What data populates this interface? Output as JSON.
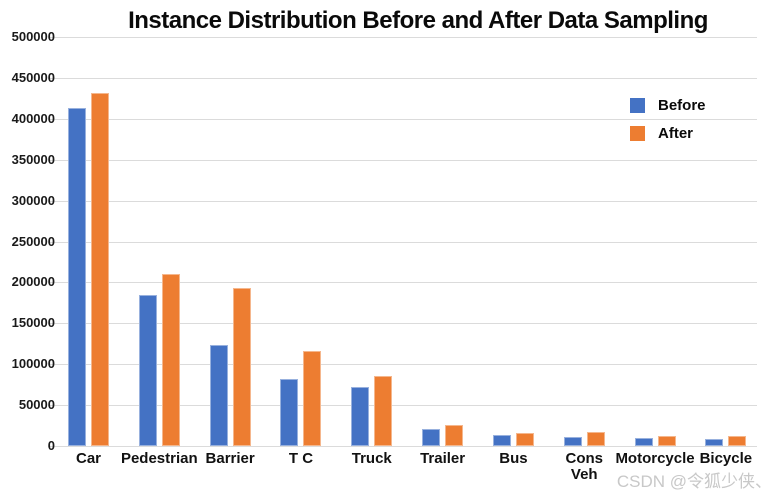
{
  "watermark": "CSDN @令狐少侠、",
  "chart_data": {
    "type": "bar",
    "title": "Instance Distribution Before and After Data Sampling",
    "categories": [
      "Car",
      "Pedestrian",
      "Barrier",
      "T C",
      "Truck",
      "Trailer",
      "Bus",
      "Cons\nVeh",
      "Motorcycle",
      "Bicycle"
    ],
    "series": [
      {
        "name": "Before",
        "color": "#4472C4",
        "values": [
          413000,
          185000,
          124000,
          82000,
          72000,
          21000,
          13000,
          11500,
          9500,
          8000
        ]
      },
      {
        "name": "After",
        "color": "#ED7D31",
        "values": [
          432000,
          210000,
          193000,
          116000,
          85000,
          26000,
          15500,
          17500,
          12000,
          12500
        ]
      }
    ],
    "xlabel": "",
    "ylabel": "",
    "ylim": [
      0,
      500000
    ],
    "ytick_step": 50000,
    "yticks": [
      "0",
      "50000",
      "100000",
      "150000",
      "200000",
      "250000",
      "300000",
      "350000",
      "400000",
      "450000",
      "500000"
    ],
    "grid": "horizontal",
    "gridline_color": "#dbdbdb",
    "legend_position": "upper-right"
  }
}
